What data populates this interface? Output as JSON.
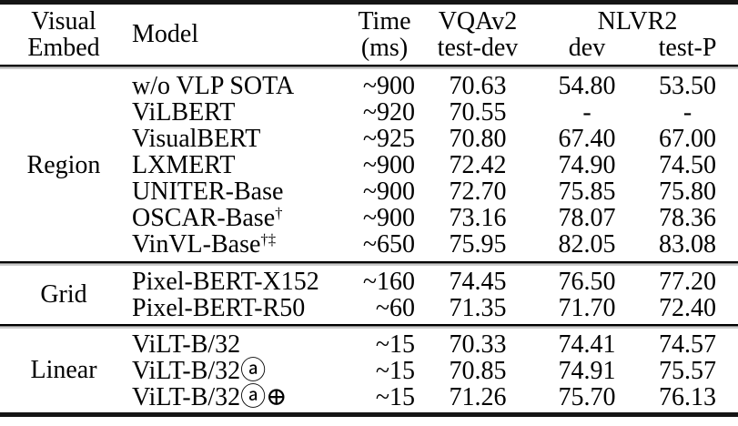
{
  "colors": {
    "text": "#000000",
    "rule": "#151515",
    "background": "#ffffff"
  },
  "table": {
    "header": {
      "visual_embed_line1": "Visual",
      "visual_embed_line2": "Embed",
      "model": "Model",
      "time_line1": "Time",
      "time_line2": "(ms)",
      "vqav2_line1": "VQAv2",
      "vqav2_line2": "test-dev",
      "nlvr2": "NLVR2",
      "nlvr2_dev": "dev",
      "nlvr2_testp": "test-P"
    },
    "groups": [
      {
        "label": "Region",
        "rows": [
          {
            "model": "w/o VLP SOTA",
            "sup": "",
            "time": "~900",
            "vqav2_testdev": "70.63",
            "nlvr2_dev": "54.80",
            "nlvr2_testp": "53.50"
          },
          {
            "model": "ViLBERT",
            "sup": "",
            "time": "~920",
            "vqav2_testdev": "70.55",
            "nlvr2_dev": "-",
            "nlvr2_testp": "-"
          },
          {
            "model": "VisualBERT",
            "sup": "",
            "time": "~925",
            "vqav2_testdev": "70.80",
            "nlvr2_dev": "67.40",
            "nlvr2_testp": "67.00"
          },
          {
            "model": "LXMERT",
            "sup": "",
            "time": "~900",
            "vqav2_testdev": "72.42",
            "nlvr2_dev": "74.90",
            "nlvr2_testp": "74.50"
          },
          {
            "model": "UNITER-Base",
            "sup": "",
            "time": "~900",
            "vqav2_testdev": "72.70",
            "nlvr2_dev": "75.85",
            "nlvr2_testp": "75.80"
          },
          {
            "model": "OSCAR-Base",
            "sup": "†",
            "time": "~900",
            "vqav2_testdev": "73.16",
            "nlvr2_dev": "78.07",
            "nlvr2_testp": "78.36"
          },
          {
            "model": "VinVL-Base",
            "sup": "†‡",
            "time": "~650",
            "vqav2_testdev": "75.95",
            "nlvr2_dev": "82.05",
            "nlvr2_testp": "83.08"
          }
        ]
      },
      {
        "label": "Grid",
        "rows": [
          {
            "model": "Pixel-BERT-X152",
            "sup": "",
            "time": "~160",
            "vqav2_testdev": "74.45",
            "nlvr2_dev": "76.50",
            "nlvr2_testp": "77.20"
          },
          {
            "model": "Pixel-BERT-R50",
            "sup": "",
            "time": "~60",
            "vqav2_testdev": "71.35",
            "nlvr2_dev": "71.70",
            "nlvr2_testp": "72.40"
          }
        ]
      },
      {
        "label": "Linear",
        "rows": [
          {
            "model": "ViLT-B/32",
            "sup": "",
            "time": "~15",
            "vqav2_testdev": "70.33",
            "nlvr2_dev": "74.41",
            "nlvr2_testp": "74.57"
          },
          {
            "model": "ViLT-B/32ⓐ",
            "sup": "",
            "time": "~15",
            "vqav2_testdev": "70.85",
            "nlvr2_dev": "74.91",
            "nlvr2_testp": "75.57"
          },
          {
            "model": "ViLT-B/32ⓐ⊕",
            "sup": "",
            "time": "~15",
            "vqav2_testdev": "71.26",
            "nlvr2_dev": "75.70",
            "nlvr2_testp": "76.13"
          }
        ]
      }
    ]
  }
}
